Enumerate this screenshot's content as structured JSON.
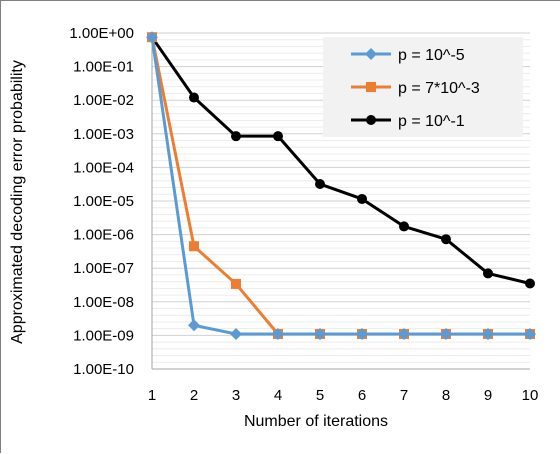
{
  "chart_data": {
    "type": "line",
    "title": "",
    "xlabel": "Number of iterations",
    "ylabel": "Approximated decoding error probability",
    "yscale": "log",
    "xlim": [
      1,
      10
    ],
    "ylim": [
      1e-10,
      1
    ],
    "grid": "horizontal",
    "legend_position": "top-right",
    "x": [
      1,
      2,
      3,
      4,
      5,
      6,
      7,
      8,
      9,
      10
    ],
    "x_tick_labels": [
      "1",
      "2",
      "3",
      "4",
      "5",
      "6",
      "7",
      "8",
      "9",
      "10"
    ],
    "y_ticks": [
      1,
      0.1,
      0.01,
      0.001,
      0.0001,
      1e-05,
      1e-06,
      1e-07,
      1e-08,
      1e-09,
      1e-10
    ],
    "y_tick_labels": [
      "1.00E+00",
      "1.00E-01",
      "1.00E-02",
      "1.00E-03",
      "1.00E-04",
      "1.00E-05",
      "1.00E-06",
      "1.00E-07",
      "1.00E-08",
      "1.00E-09",
      "1.00E-10"
    ],
    "series": [
      {
        "name": "p = 10^-5",
        "color": "#5b9bd5",
        "marker": "diamond",
        "values": [
          0.75,
          2e-09,
          1.1e-09,
          1.1e-09,
          1.1e-09,
          1.1e-09,
          1.1e-09,
          1.1e-09,
          1.1e-09,
          1.1e-09
        ]
      },
      {
        "name": "p = 7*10^-3",
        "color": "#ed7d31",
        "marker": "square",
        "values": [
          0.75,
          4.5e-07,
          3.4e-08,
          1.1e-09,
          1.1e-09,
          1.1e-09,
          1.1e-09,
          1.1e-09,
          1.1e-09,
          1.1e-09
        ]
      },
      {
        "name": "p = 10^-1",
        "color": "#000000",
        "marker": "circle",
        "values": [
          0.75,
          0.012,
          0.00085,
          0.00085,
          3.2e-05,
          1.15e-05,
          1.75e-06,
          7.3e-07,
          7e-08,
          3.5e-08
        ]
      }
    ]
  }
}
